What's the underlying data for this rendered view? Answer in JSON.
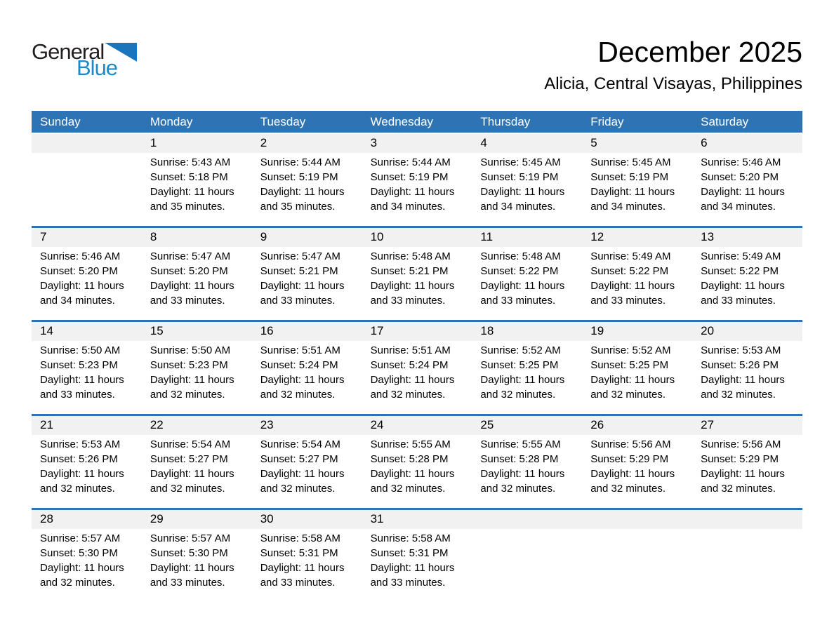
{
  "logo": {
    "part1": "General",
    "part2": "Blue"
  },
  "header": {
    "title": "December 2025",
    "subtitle": "Alicia, Central Visayas, Philippines"
  },
  "colors": {
    "header_blue": "#2e74b5",
    "strip_gray": "#f1f1f1",
    "logo_blue": "#1e8bc8",
    "triangle_blue": "#1b75bc",
    "header_text": "#ffffff"
  },
  "calendar": {
    "weekdays": [
      "Sunday",
      "Monday",
      "Tuesday",
      "Wednesday",
      "Thursday",
      "Friday",
      "Saturday"
    ],
    "weeks": [
      [
        {
          "day": "",
          "lines": []
        },
        {
          "day": "1",
          "lines": [
            "Sunrise: 5:43 AM",
            "Sunset: 5:18 PM",
            "Daylight: 11 hours",
            "and 35 minutes."
          ]
        },
        {
          "day": "2",
          "lines": [
            "Sunrise: 5:44 AM",
            "Sunset: 5:19 PM",
            "Daylight: 11 hours",
            "and 35 minutes."
          ]
        },
        {
          "day": "3",
          "lines": [
            "Sunrise: 5:44 AM",
            "Sunset: 5:19 PM",
            "Daylight: 11 hours",
            "and 34 minutes."
          ]
        },
        {
          "day": "4",
          "lines": [
            "Sunrise: 5:45 AM",
            "Sunset: 5:19 PM",
            "Daylight: 11 hours",
            "and 34 minutes."
          ]
        },
        {
          "day": "5",
          "lines": [
            "Sunrise: 5:45 AM",
            "Sunset: 5:19 PM",
            "Daylight: 11 hours",
            "and 34 minutes."
          ]
        },
        {
          "day": "6",
          "lines": [
            "Sunrise: 5:46 AM",
            "Sunset: 5:20 PM",
            "Daylight: 11 hours",
            "and 34 minutes."
          ]
        }
      ],
      [
        {
          "day": "7",
          "lines": [
            "Sunrise: 5:46 AM",
            "Sunset: 5:20 PM",
            "Daylight: 11 hours",
            "and 34 minutes."
          ]
        },
        {
          "day": "8",
          "lines": [
            "Sunrise: 5:47 AM",
            "Sunset: 5:20 PM",
            "Daylight: 11 hours",
            "and 33 minutes."
          ]
        },
        {
          "day": "9",
          "lines": [
            "Sunrise: 5:47 AM",
            "Sunset: 5:21 PM",
            "Daylight: 11 hours",
            "and 33 minutes."
          ]
        },
        {
          "day": "10",
          "lines": [
            "Sunrise: 5:48 AM",
            "Sunset: 5:21 PM",
            "Daylight: 11 hours",
            "and 33 minutes."
          ]
        },
        {
          "day": "11",
          "lines": [
            "Sunrise: 5:48 AM",
            "Sunset: 5:22 PM",
            "Daylight: 11 hours",
            "and 33 minutes."
          ]
        },
        {
          "day": "12",
          "lines": [
            "Sunrise: 5:49 AM",
            "Sunset: 5:22 PM",
            "Daylight: 11 hours",
            "and 33 minutes."
          ]
        },
        {
          "day": "13",
          "lines": [
            "Sunrise: 5:49 AM",
            "Sunset: 5:22 PM",
            "Daylight: 11 hours",
            "and 33 minutes."
          ]
        }
      ],
      [
        {
          "day": "14",
          "lines": [
            "Sunrise: 5:50 AM",
            "Sunset: 5:23 PM",
            "Daylight: 11 hours",
            "and 33 minutes."
          ]
        },
        {
          "day": "15",
          "lines": [
            "Sunrise: 5:50 AM",
            "Sunset: 5:23 PM",
            "Daylight: 11 hours",
            "and 32 minutes."
          ]
        },
        {
          "day": "16",
          "lines": [
            "Sunrise: 5:51 AM",
            "Sunset: 5:24 PM",
            "Daylight: 11 hours",
            "and 32 minutes."
          ]
        },
        {
          "day": "17",
          "lines": [
            "Sunrise: 5:51 AM",
            "Sunset: 5:24 PM",
            "Daylight: 11 hours",
            "and 32 minutes."
          ]
        },
        {
          "day": "18",
          "lines": [
            "Sunrise: 5:52 AM",
            "Sunset: 5:25 PM",
            "Daylight: 11 hours",
            "and 32 minutes."
          ]
        },
        {
          "day": "19",
          "lines": [
            "Sunrise: 5:52 AM",
            "Sunset: 5:25 PM",
            "Daylight: 11 hours",
            "and 32 minutes."
          ]
        },
        {
          "day": "20",
          "lines": [
            "Sunrise: 5:53 AM",
            "Sunset: 5:26 PM",
            "Daylight: 11 hours",
            "and 32 minutes."
          ]
        }
      ],
      [
        {
          "day": "21",
          "lines": [
            "Sunrise: 5:53 AM",
            "Sunset: 5:26 PM",
            "Daylight: 11 hours",
            "and 32 minutes."
          ]
        },
        {
          "day": "22",
          "lines": [
            "Sunrise: 5:54 AM",
            "Sunset: 5:27 PM",
            "Daylight: 11 hours",
            "and 32 minutes."
          ]
        },
        {
          "day": "23",
          "lines": [
            "Sunrise: 5:54 AM",
            "Sunset: 5:27 PM",
            "Daylight: 11 hours",
            "and 32 minutes."
          ]
        },
        {
          "day": "24",
          "lines": [
            "Sunrise: 5:55 AM",
            "Sunset: 5:28 PM",
            "Daylight: 11 hours",
            "and 32 minutes."
          ]
        },
        {
          "day": "25",
          "lines": [
            "Sunrise: 5:55 AM",
            "Sunset: 5:28 PM",
            "Daylight: 11 hours",
            "and 32 minutes."
          ]
        },
        {
          "day": "26",
          "lines": [
            "Sunrise: 5:56 AM",
            "Sunset: 5:29 PM",
            "Daylight: 11 hours",
            "and 32 minutes."
          ]
        },
        {
          "day": "27",
          "lines": [
            "Sunrise: 5:56 AM",
            "Sunset: 5:29 PM",
            "Daylight: 11 hours",
            "and 32 minutes."
          ]
        }
      ],
      [
        {
          "day": "28",
          "lines": [
            "Sunrise: 5:57 AM",
            "Sunset: 5:30 PM",
            "Daylight: 11 hours",
            "and 32 minutes."
          ]
        },
        {
          "day": "29",
          "lines": [
            "Sunrise: 5:57 AM",
            "Sunset: 5:30 PM",
            "Daylight: 11 hours",
            "and 33 minutes."
          ]
        },
        {
          "day": "30",
          "lines": [
            "Sunrise: 5:58 AM",
            "Sunset: 5:31 PM",
            "Daylight: 11 hours",
            "and 33 minutes."
          ]
        },
        {
          "day": "31",
          "lines": [
            "Sunrise: 5:58 AM",
            "Sunset: 5:31 PM",
            "Daylight: 11 hours",
            "and 33 minutes."
          ]
        },
        {
          "day": "",
          "lines": []
        },
        {
          "day": "",
          "lines": []
        },
        {
          "day": "",
          "lines": []
        }
      ]
    ]
  }
}
